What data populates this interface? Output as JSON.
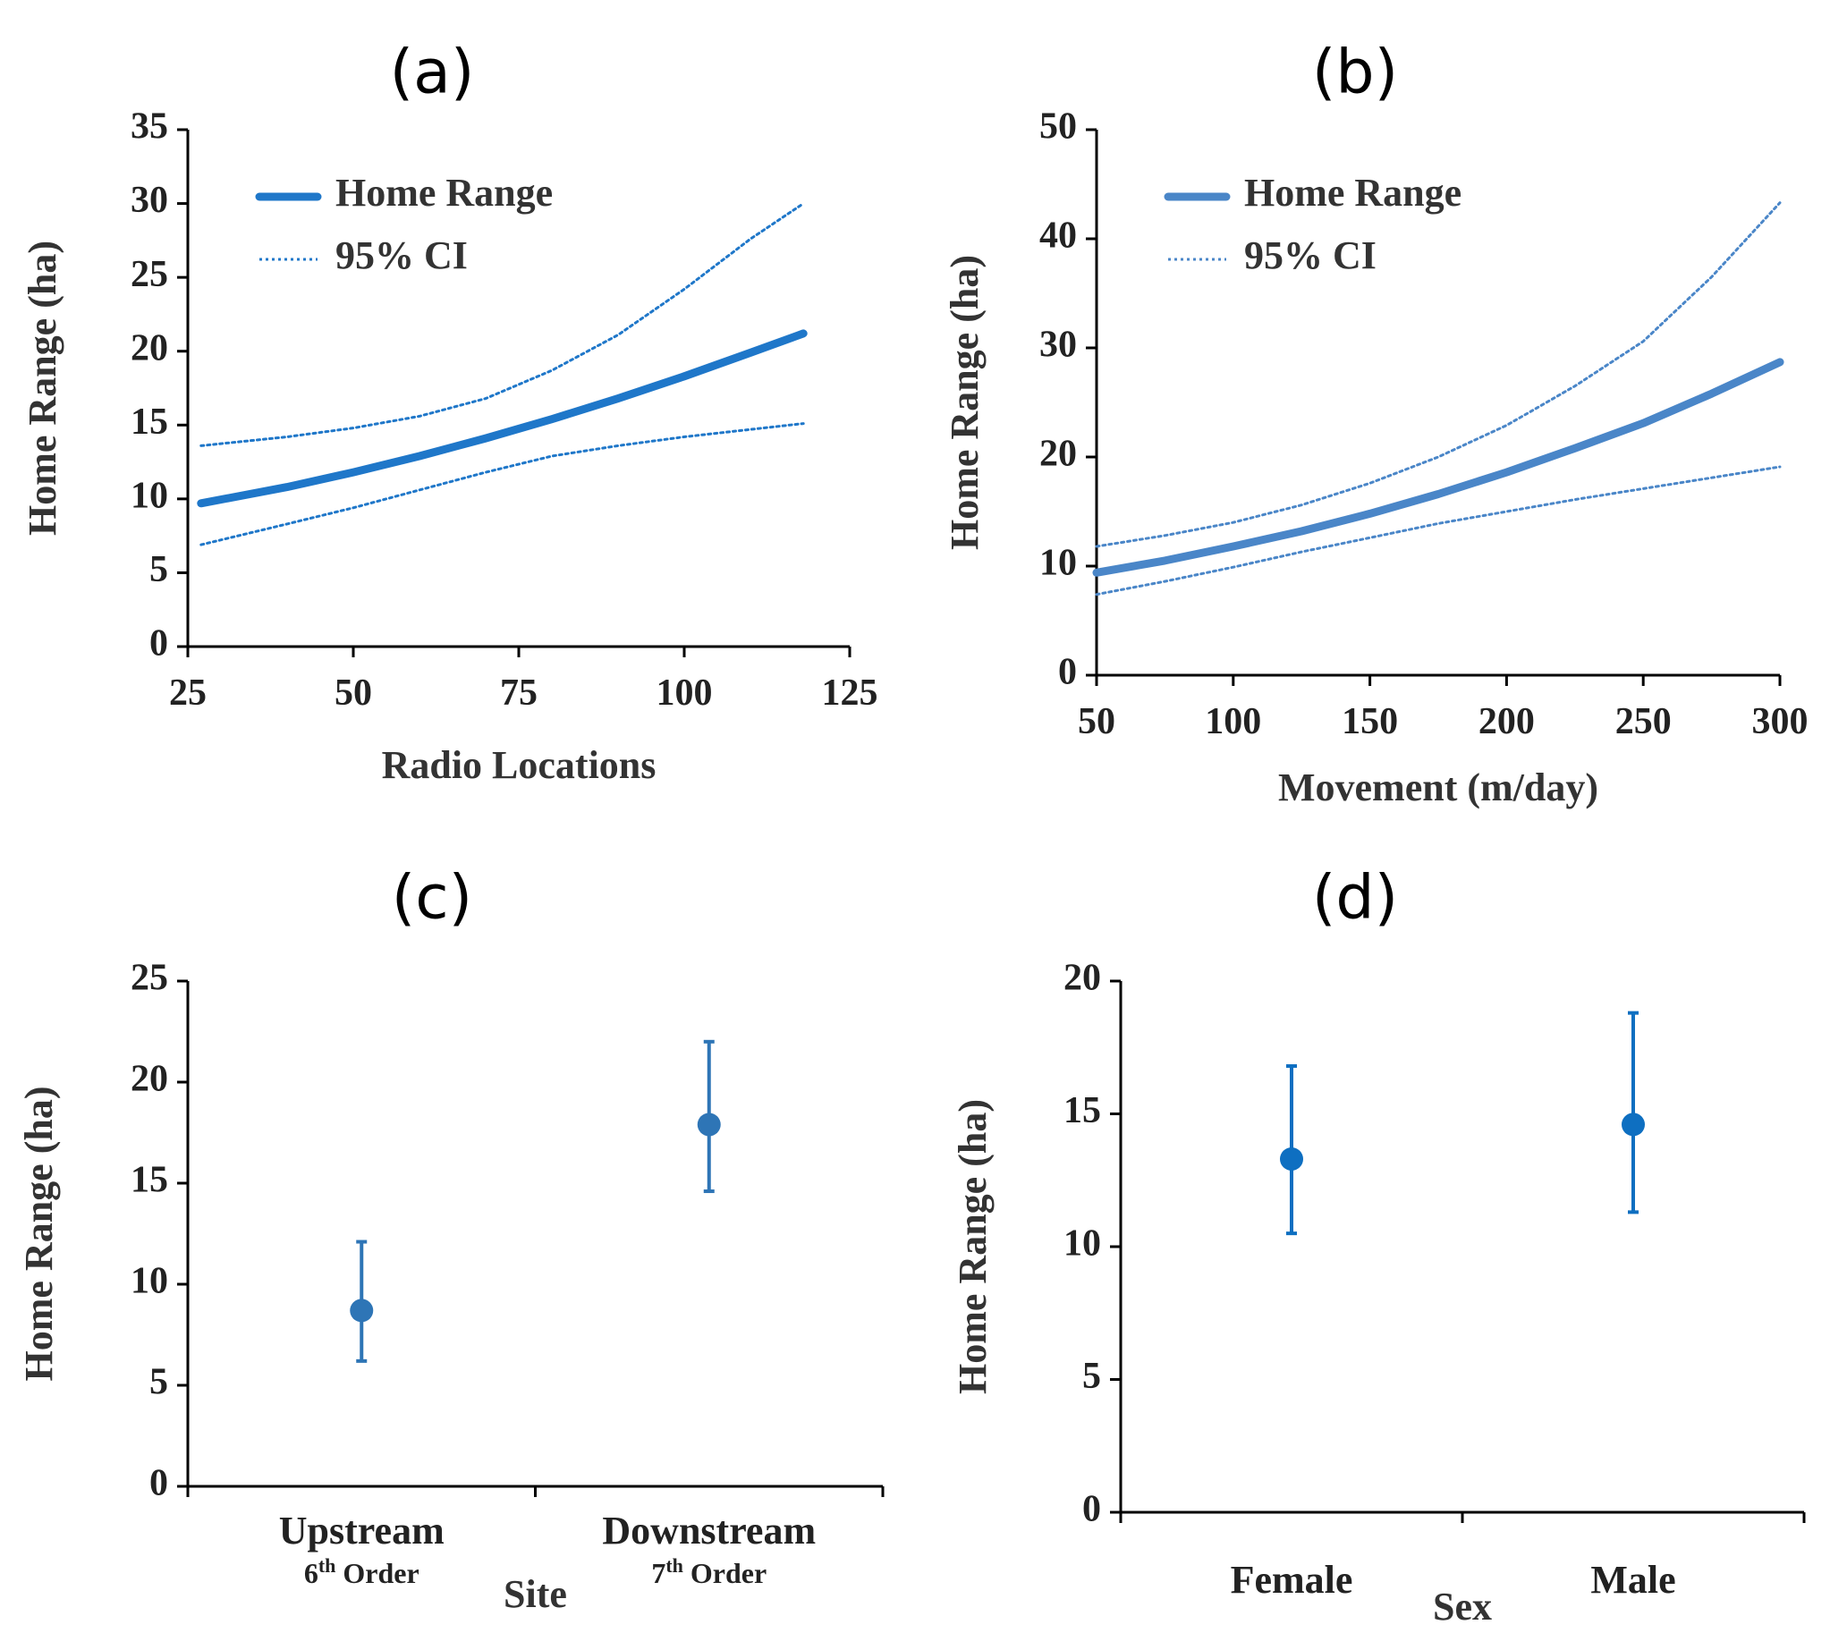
{
  "chart_data": [
    {
      "id": "a",
      "type": "line",
      "panel_label": "(a)",
      "xlabel": "Radio Locations",
      "ylabel": "Home Range (ha)",
      "xlim": [
        25,
        125
      ],
      "ylim": [
        0,
        35
      ],
      "xticks": [
        "25",
        "50",
        "75",
        "100",
        "125"
      ],
      "yticks": [
        "0",
        "5",
        "10",
        "15",
        "20",
        "25",
        "30",
        "35"
      ],
      "legend": {
        "position": "top-left",
        "entries": [
          "Home Range",
          "95% CI"
        ]
      },
      "color": "#1f77c9",
      "series": [
        {
          "name": "Home Range",
          "style": "solid",
          "x": [
            27,
            40,
            50,
            60,
            70,
            80,
            90,
            100,
            110,
            118
          ],
          "y": [
            9.7,
            10.8,
            11.8,
            12.9,
            14.1,
            15.4,
            16.8,
            18.3,
            19.9,
            21.2
          ]
        },
        {
          "name": "95% CI upper",
          "style": "dotted",
          "x": [
            27,
            40,
            50,
            60,
            70,
            80,
            90,
            100,
            110,
            118
          ],
          "y": [
            13.6,
            14.2,
            14.8,
            15.6,
            16.8,
            18.7,
            21.1,
            24.2,
            27.6,
            30.0
          ]
        },
        {
          "name": "95% CI lower",
          "style": "dotted",
          "x": [
            27,
            40,
            50,
            60,
            70,
            80,
            90,
            100,
            110,
            118
          ],
          "y": [
            6.9,
            8.3,
            9.4,
            10.6,
            11.8,
            12.9,
            13.6,
            14.2,
            14.7,
            15.1
          ]
        }
      ]
    },
    {
      "id": "b",
      "type": "line",
      "panel_label": "(b)",
      "xlabel": "Movement (m/day)",
      "ylabel": "Home Range (ha)",
      "xlim": [
        50,
        300
      ],
      "ylim": [
        0,
        50
      ],
      "xticks": [
        "50",
        "100",
        "150",
        "200",
        "250",
        "300"
      ],
      "yticks": [
        "0",
        "10",
        "20",
        "30",
        "40",
        "50"
      ],
      "legend": {
        "position": "top-left",
        "entries": [
          "Home Range",
          "95% CI"
        ]
      },
      "color": "#4a86c8",
      "series": [
        {
          "name": "Home Range",
          "style": "solid",
          "x": [
            50,
            75,
            100,
            125,
            150,
            175,
            200,
            225,
            250,
            275,
            300
          ],
          "y": [
            9.4,
            10.5,
            11.8,
            13.2,
            14.8,
            16.6,
            18.6,
            20.8,
            23.1,
            25.8,
            28.7
          ]
        },
        {
          "name": "95% CI upper",
          "style": "dotted",
          "x": [
            50,
            75,
            100,
            125,
            150,
            175,
            200,
            225,
            250,
            275,
            300
          ],
          "y": [
            11.8,
            12.8,
            14.0,
            15.6,
            17.6,
            20.0,
            22.9,
            26.5,
            30.6,
            36.5,
            43.3
          ]
        },
        {
          "name": "95% CI lower",
          "style": "dotted",
          "x": [
            50,
            75,
            100,
            125,
            150,
            175,
            200,
            225,
            250,
            275,
            300
          ],
          "y": [
            7.4,
            8.6,
            9.9,
            11.3,
            12.6,
            13.9,
            15.0,
            16.1,
            17.1,
            18.1,
            19.1
          ]
        }
      ]
    },
    {
      "id": "c",
      "type": "scatter",
      "panel_label": "(c)",
      "xlabel": "Site",
      "ylabel": "Home Range (ha)",
      "ylim": [
        0,
        25
      ],
      "yticks": [
        "0",
        "5",
        "10",
        "15",
        "20",
        "25"
      ],
      "color": "#2e75b6",
      "categories": [
        {
          "label": "Upstream",
          "sub_base": "6",
          "sub_sup": "th",
          "sub_rest": " Order"
        },
        {
          "label": "Downstream",
          "sub_base": "7",
          "sub_sup": "th",
          "sub_rest": " Order"
        }
      ],
      "values": [
        8.7,
        17.9
      ],
      "err_low": [
        6.2,
        14.6
      ],
      "err_high": [
        12.1,
        22.0
      ]
    },
    {
      "id": "d",
      "type": "scatter",
      "panel_label": "(d)",
      "xlabel": "Sex",
      "ylabel": "Home Range (ha)",
      "ylim": [
        0,
        20
      ],
      "yticks": [
        "0",
        "5",
        "10",
        "15",
        "20"
      ],
      "color": "#0e6fc1",
      "categories": [
        {
          "label": "Female"
        },
        {
          "label": "Male"
        }
      ],
      "values": [
        13.3,
        14.6
      ],
      "err_low": [
        10.5,
        11.3
      ],
      "err_high": [
        16.8,
        18.8
      ]
    }
  ]
}
